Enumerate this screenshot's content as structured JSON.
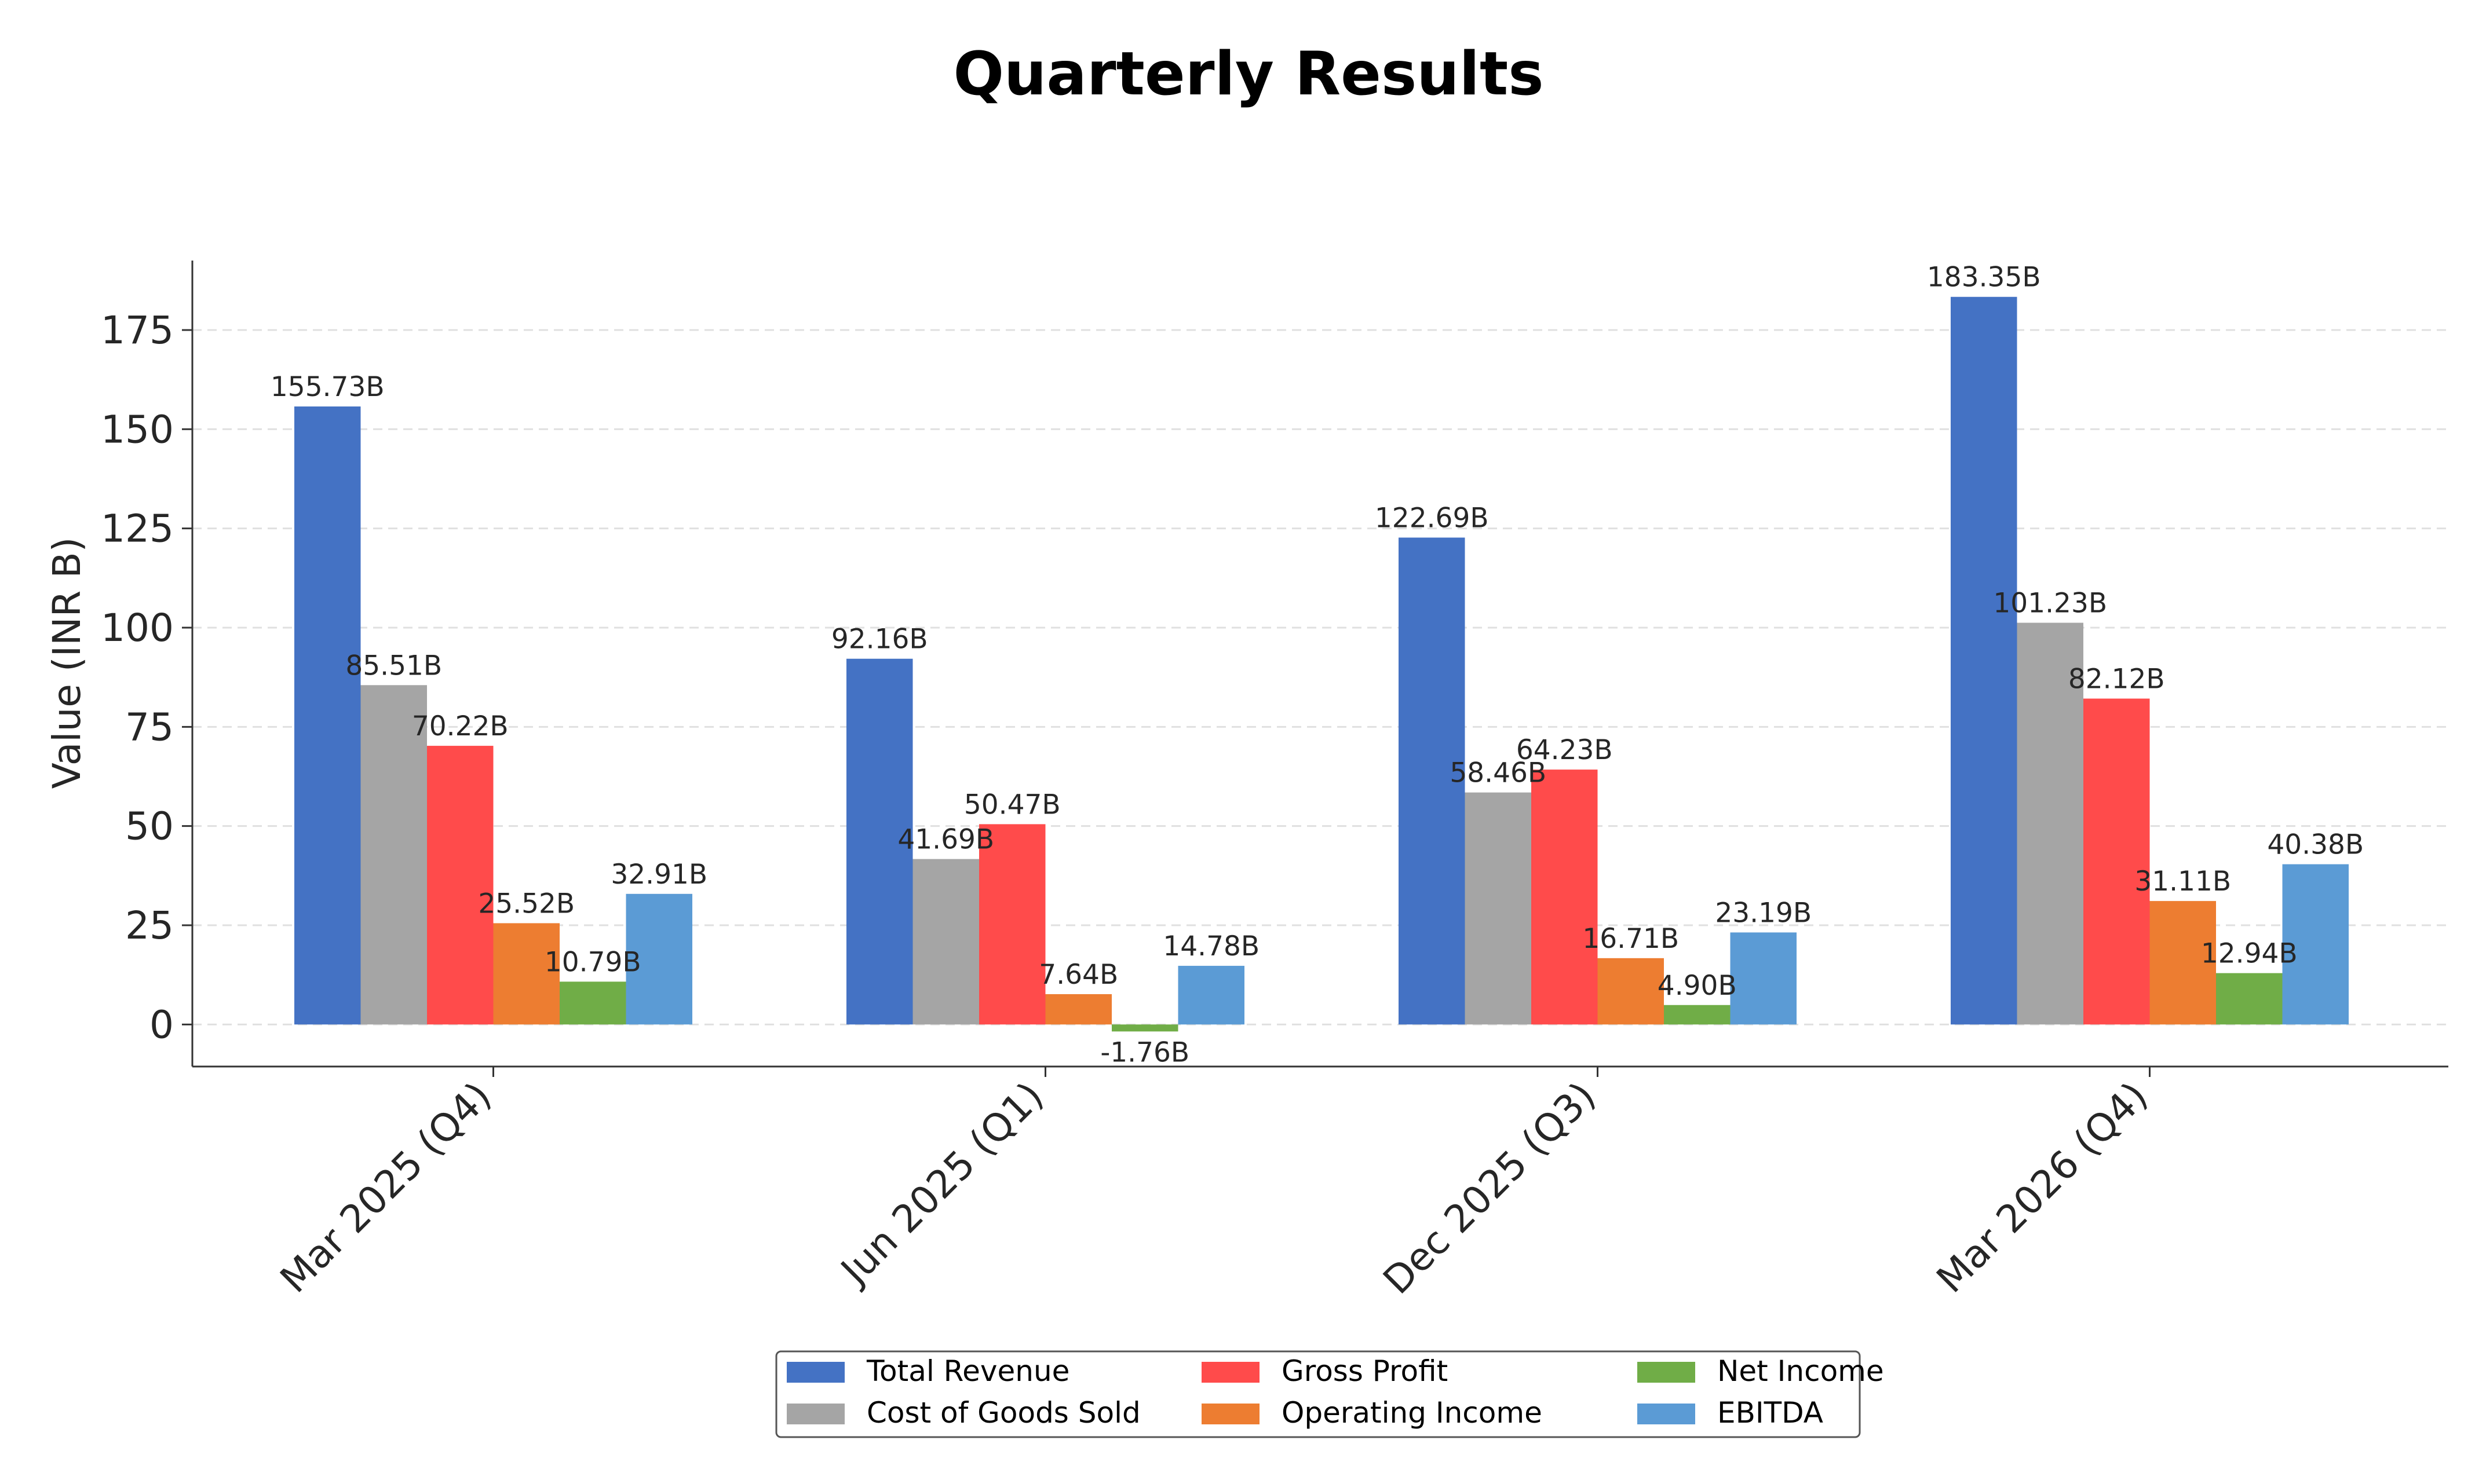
{
  "chart_data": {
    "type": "bar",
    "title": "Quarterly Results",
    "xlabel": "",
    "ylabel": "Value (INR B)",
    "ylim": [
      -10.6,
      192.5
    ],
    "yticks": [
      "0",
      "25",
      "50",
      "75",
      "100",
      "125",
      "150",
      "175"
    ],
    "grid": "horizontal dashed",
    "legend_position": "bottom-center",
    "categories": [
      "Mar 2025 (Q4)",
      "Jun 2025 (Q1)",
      "Dec 2025 (Q3)",
      "Mar 2026 (Q4)"
    ],
    "series": [
      {
        "name": "Total Revenue",
        "color": "#4472C4",
        "values": [
          155.73,
          92.16,
          122.69,
          183.35
        ],
        "labels": [
          "155.73B",
          "92.16B",
          "122.69B",
          "183.35B"
        ]
      },
      {
        "name": "Cost of Goods Sold",
        "color": "#A5A5A5",
        "values": [
          85.51,
          41.69,
          58.46,
          101.23
        ],
        "labels": [
          "85.51B",
          "41.69B",
          "58.46B",
          "101.23B"
        ]
      },
      {
        "name": "Gross Profit",
        "color": "#FF4B4B",
        "values": [
          70.22,
          50.47,
          64.23,
          82.12
        ],
        "labels": [
          "70.22B",
          "50.47B",
          "64.23B",
          "82.12B"
        ]
      },
      {
        "name": "Operating Income",
        "color": "#ED7D31",
        "values": [
          25.52,
          7.64,
          16.71,
          31.11
        ],
        "labels": [
          "25.52B",
          "7.64B",
          "16.71B",
          "31.11B"
        ]
      },
      {
        "name": "Net Income",
        "color": "#70AD47",
        "values": [
          10.79,
          -1.76,
          4.9,
          12.94
        ],
        "labels": [
          "10.79B",
          "-1.76B",
          "4.90B",
          "12.94B"
        ]
      },
      {
        "name": "EBITDA",
        "color": "#5B9BD5",
        "values": [
          32.91,
          14.78,
          23.19,
          40.38
        ],
        "labels": [
          "32.91B",
          "14.78B",
          "23.19B",
          "40.38B"
        ]
      }
    ]
  }
}
